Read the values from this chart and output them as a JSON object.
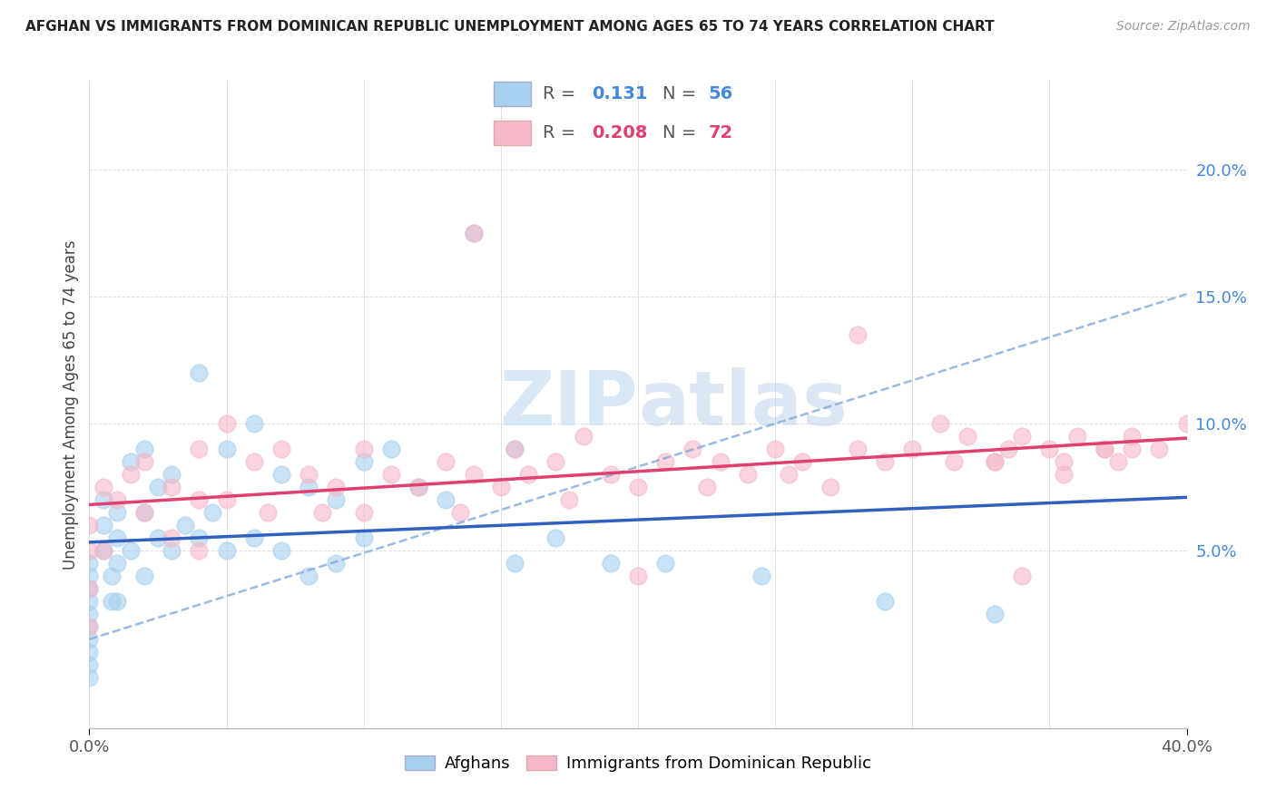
{
  "title": "AFGHAN VS IMMIGRANTS FROM DOMINICAN REPUBLIC UNEMPLOYMENT AMONG AGES 65 TO 74 YEARS CORRELATION CHART",
  "source": "Source: ZipAtlas.com",
  "ylabel": "Unemployment Among Ages 65 to 74 years",
  "xlim": [
    0.0,
    0.4
  ],
  "ylim": [
    -0.02,
    0.235
  ],
  "ytick_positions": [
    0.05,
    0.1,
    0.15,
    0.2
  ],
  "ytick_labels": [
    "5.0%",
    "10.0%",
    "15.0%",
    "20.0%"
  ],
  "afghan_R": 0.131,
  "afghan_N": 56,
  "dominican_R": 0.208,
  "dominican_N": 72,
  "afghan_color": "#a8d0f0",
  "dominican_color": "#f5b8c8",
  "afghan_line_color": "#3060c0",
  "dominican_line_color": "#e04070",
  "afghan_dash_color": "#90b8e8",
  "background_color": "#ffffff",
  "grid_color": "#e0e0e0",
  "legend_R_color_afghan": "#4488dd",
  "legend_R_color_dominican": "#e04070",
  "legend_N_color_afghan": "#4488dd",
  "legend_N_color_dominican": "#e04070",
  "watermark_color": "#c8dff0",
  "ytick_color": "#4488dd",
  "afghan_x": [
    0.0,
    0.0,
    0.0,
    0.0,
    0.0,
    0.0,
    0.0,
    0.0,
    0.0,
    0.0,
    0.005,
    0.005,
    0.005,
    0.008,
    0.008,
    0.01,
    0.01,
    0.01,
    0.01,
    0.015,
    0.015,
    0.02,
    0.02,
    0.02,
    0.025,
    0.025,
    0.03,
    0.03,
    0.035,
    0.04,
    0.04,
    0.045,
    0.05,
    0.05,
    0.06,
    0.06,
    0.07,
    0.07,
    0.08,
    0.08,
    0.09,
    0.09,
    0.1,
    0.1,
    0.11,
    0.12,
    0.13,
    0.14,
    0.155,
    0.155,
    0.17,
    0.19,
    0.21,
    0.245,
    0.29,
    0.33
  ],
  "afghan_y": [
    0.045,
    0.04,
    0.035,
    0.03,
    0.025,
    0.02,
    0.015,
    0.01,
    0.005,
    0.0,
    0.07,
    0.06,
    0.05,
    0.04,
    0.03,
    0.065,
    0.055,
    0.045,
    0.03,
    0.085,
    0.05,
    0.09,
    0.065,
    0.04,
    0.075,
    0.055,
    0.08,
    0.05,
    0.06,
    0.12,
    0.055,
    0.065,
    0.09,
    0.05,
    0.1,
    0.055,
    0.08,
    0.05,
    0.075,
    0.04,
    0.07,
    0.045,
    0.085,
    0.055,
    0.09,
    0.075,
    0.07,
    0.175,
    0.09,
    0.045,
    0.055,
    0.045,
    0.045,
    0.04,
    0.03,
    0.025
  ],
  "dominican_x": [
    0.0,
    0.0,
    0.0,
    0.0,
    0.005,
    0.005,
    0.01,
    0.015,
    0.02,
    0.02,
    0.03,
    0.03,
    0.04,
    0.04,
    0.04,
    0.05,
    0.05,
    0.06,
    0.065,
    0.07,
    0.08,
    0.085,
    0.09,
    0.1,
    0.1,
    0.11,
    0.12,
    0.13,
    0.135,
    0.14,
    0.15,
    0.155,
    0.16,
    0.17,
    0.175,
    0.18,
    0.19,
    0.2,
    0.21,
    0.22,
    0.225,
    0.23,
    0.24,
    0.25,
    0.255,
    0.26,
    0.27,
    0.28,
    0.29,
    0.3,
    0.31,
    0.315,
    0.32,
    0.33,
    0.335,
    0.34,
    0.35,
    0.355,
    0.36,
    0.37,
    0.375,
    0.38,
    0.39,
    0.14,
    0.2,
    0.28,
    0.33,
    0.34,
    0.355,
    0.37,
    0.38,
    0.4
  ],
  "dominican_y": [
    0.06,
    0.05,
    0.035,
    0.02,
    0.075,
    0.05,
    0.07,
    0.08,
    0.085,
    0.065,
    0.075,
    0.055,
    0.09,
    0.07,
    0.05,
    0.1,
    0.07,
    0.085,
    0.065,
    0.09,
    0.08,
    0.065,
    0.075,
    0.09,
    0.065,
    0.08,
    0.075,
    0.085,
    0.065,
    0.08,
    0.075,
    0.09,
    0.08,
    0.085,
    0.07,
    0.095,
    0.08,
    0.075,
    0.085,
    0.09,
    0.075,
    0.085,
    0.08,
    0.09,
    0.08,
    0.085,
    0.075,
    0.09,
    0.085,
    0.09,
    0.1,
    0.085,
    0.095,
    0.085,
    0.09,
    0.095,
    0.09,
    0.085,
    0.095,
    0.09,
    0.085,
    0.095,
    0.09,
    0.175,
    0.04,
    0.135,
    0.085,
    0.04,
    0.08,
    0.09,
    0.09,
    0.1
  ]
}
